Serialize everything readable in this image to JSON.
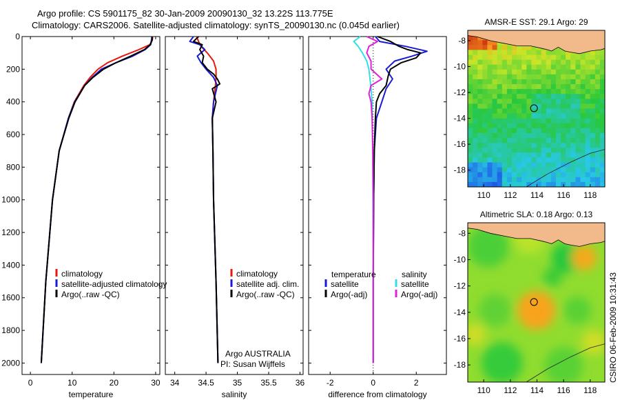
{
  "header": {
    "line1": "Argo profile: CS 5901175_82 30-Jan-2009 20090130_32 13.22S 113.775E",
    "line2": "Climatology: CARS2006. Satellite-adjusted climatology: synTS_20090130.nc (0.045d earlier)"
  },
  "colors": {
    "red": "#e8160b",
    "blue": "#1a1ad6",
    "black": "#000000",
    "cyan": "#30e0e8",
    "magenta": "#e020d8"
  },
  "chart_data": [
    {
      "id": "temperature",
      "type": "line",
      "xlabel": "temperature",
      "ylabel": "",
      "xlim": [
        -2,
        31
      ],
      "ylim": [
        0,
        2070
      ],
      "xticks": [
        0,
        10,
        20,
        30
      ],
      "xtick_labels": [
        "0",
        "10",
        "20",
        "30"
      ],
      "yticks": [
        0,
        200,
        400,
        600,
        800,
        1000,
        1200,
        1400,
        1600,
        1800,
        2000
      ],
      "ytick_labels": [
        "0",
        "200",
        "400",
        "600",
        "800",
        "1000",
        "1200",
        "1400",
        "1600",
        "1800",
        "2000"
      ],
      "legend": {
        "position": "lower-right",
        "entries": [
          "climatology",
          "satellite-adjusted climatology",
          "Argo(..raw -QC)"
        ]
      },
      "series": [
        {
          "name": "climatology",
          "color": "red",
          "depth": [
            0,
            20,
            50,
            80,
            120,
            160,
            200,
            250,
            300,
            400,
            500,
            700,
            1000,
            1500,
            2000
          ],
          "values": [
            29.3,
            29.2,
            28.6,
            26.0,
            22.0,
            18.5,
            16.2,
            14.3,
            12.8,
            10.5,
            9.1,
            6.9,
            5.3,
            3.7,
            2.6
          ]
        },
        {
          "name": "satellite-adjusted climatology",
          "color": "blue",
          "depth": [
            0,
            20,
            50,
            80,
            120,
            160,
            200,
            250,
            300,
            400,
            500,
            700,
            1000,
            1500,
            2000
          ],
          "values": [
            29.1,
            29.0,
            28.8,
            27.5,
            24.5,
            20.5,
            17.0,
            14.8,
            13.0,
            10.6,
            9.1,
            6.9,
            5.3,
            3.7,
            2.6
          ]
        },
        {
          "name": "Argo(..raw -QC)",
          "color": "black",
          "depth": [
            0,
            20,
            50,
            80,
            120,
            160,
            200,
            250,
            300,
            400,
            500,
            700,
            1000,
            1500,
            2000
          ],
          "values": [
            29.1,
            29.2,
            28.7,
            27.3,
            24.0,
            20.5,
            17.5,
            15.0,
            13.0,
            10.7,
            9.2,
            6.9,
            5.3,
            3.7,
            2.6
          ]
        }
      ]
    },
    {
      "id": "salinity",
      "type": "line",
      "xlabel": "salinity",
      "ylabel": "",
      "xlim": [
        33.85,
        36.05
      ],
      "ylim": [
        0,
        2070
      ],
      "xticks": [
        34,
        34.5,
        35,
        35.5,
        36
      ],
      "xtick_labels": [
        "34",
        "34.5",
        "35",
        "35.5",
        "36"
      ],
      "legend": {
        "position": "lower-right",
        "entries": [
          "climatology",
          "satellite adj. clim.",
          "Argo(..raw -QC)"
        ]
      },
      "annotations": [
        "Argo AUSTRALIA",
        "PI: Susan Wijffels"
      ],
      "series": [
        {
          "name": "climatology",
          "color": "red",
          "depth": [
            0,
            30,
            60,
            100,
            150,
            200,
            250,
            300,
            400,
            500,
            700,
            1000,
            1500,
            2000
          ],
          "values": [
            34.35,
            34.38,
            34.42,
            34.52,
            34.62,
            34.66,
            34.66,
            34.65,
            34.62,
            34.6,
            34.61,
            34.62,
            34.66,
            34.69
          ]
        },
        {
          "name": "satellite adj. clim.",
          "color": "blue",
          "depth": [
            0,
            30,
            50,
            80,
            120,
            160,
            200,
            250,
            300,
            400,
            500,
            700,
            1000,
            1500,
            2000
          ],
          "values": [
            34.3,
            34.24,
            34.4,
            34.48,
            34.36,
            34.42,
            34.5,
            34.62,
            34.68,
            34.62,
            34.6,
            34.61,
            34.62,
            34.66,
            34.69
          ]
        },
        {
          "name": "Argo(..raw -QC)",
          "color": "black",
          "depth": [
            0,
            30,
            50,
            80,
            120,
            160,
            200,
            230,
            260,
            290,
            320,
            400,
            500,
            700,
            1000,
            1500,
            2000
          ],
          "values": [
            34.38,
            34.3,
            34.44,
            34.4,
            34.46,
            34.44,
            34.52,
            34.62,
            34.68,
            34.72,
            34.6,
            34.66,
            34.6,
            34.61,
            34.62,
            34.66,
            34.69
          ]
        }
      ]
    },
    {
      "id": "difference",
      "type": "line",
      "xlabel": "difference from climatology",
      "ylabel": "",
      "xlim": [
        -3.0,
        3.4
      ],
      "ylim": [
        0,
        2070
      ],
      "xticks": [
        -2,
        0,
        2
      ],
      "xtick_labels": [
        "-2",
        "0",
        "2"
      ],
      "legend": {
        "position": "lower-center",
        "headers": [
          "temperature",
          "salinity"
        ],
        "entries": [
          "satellite",
          "Argo(-adj)",
          "satellite",
          "Argo(-adj)"
        ]
      },
      "series": [
        {
          "name": "temperature satellite",
          "color": "blue",
          "depth": [
            0,
            30,
            60,
            90,
            120,
            150,
            200,
            260,
            320,
            400,
            500,
            700,
            1000,
            1500,
            2000
          ],
          "values": [
            0.1,
            0.3,
            1.5,
            2.5,
            1.8,
            1.0,
            0.6,
            0.9,
            0.6,
            0.4,
            0.15,
            0.05,
            0.02,
            0.0,
            0.0
          ]
        },
        {
          "name": "temperature Argo(-adj)",
          "color": "black",
          "depth": [
            0,
            30,
            60,
            80,
            100,
            130,
            160,
            200,
            240,
            300,
            350,
            400,
            500,
            700,
            1000,
            1500,
            2000
          ],
          "values": [
            0.2,
            0.8,
            1.2,
            1.6,
            2.2,
            2.0,
            1.3,
            0.8,
            0.7,
            0.6,
            0.3,
            0.15,
            0.1,
            0.05,
            0.02,
            0.0,
            0.0
          ]
        },
        {
          "name": "salinity satellite",
          "color": "cyan",
          "depth": [
            0,
            30,
            60,
            100,
            150,
            200,
            260,
            320,
            400,
            500,
            700,
            1000,
            1500,
            2000
          ],
          "values": [
            -0.6,
            -0.9,
            -0.7,
            -0.5,
            -0.3,
            -0.2,
            -0.15,
            -0.1,
            -0.05,
            -0.05,
            -0.02,
            -0.01,
            0.0,
            0.0
          ]
        },
        {
          "name": "salinity Argo(-adj)",
          "color": "magenta",
          "depth": [
            0,
            30,
            60,
            100,
            150,
            200,
            260,
            300,
            350,
            400,
            500,
            700,
            1000,
            1500,
            2000
          ],
          "values": [
            -0.3,
            0.2,
            -0.2,
            -0.3,
            -0.1,
            -0.1,
            0.4,
            -0.1,
            -0.2,
            -0.1,
            -0.05,
            -0.02,
            0.0,
            0.0,
            0.0
          ]
        }
      ]
    },
    {
      "id": "sst-map",
      "type": "heatmap",
      "title": "AMSR-E SST: 29.1 Argo: 29",
      "xlim": [
        108.8,
        119.1
      ],
      "ylim": [
        -19.3,
        -7.2
      ],
      "xticks": [
        110,
        112,
        114,
        116,
        118
      ],
      "xtick_labels": [
        "110",
        "112",
        "114",
        "116",
        "118"
      ],
      "yticks": [
        -8,
        -10,
        -12,
        -14,
        -16,
        -18
      ],
      "ytick_labels": [
        "-8",
        "-10",
        "-12",
        "-14",
        "-16",
        "-18"
      ],
      "marker": {
        "lon": 113.775,
        "lat": -13.22
      }
    },
    {
      "id": "sla-map",
      "type": "heatmap",
      "title": "Altimetric SLA: 0.18 Argo: 0.13",
      "xlim": [
        108.8,
        119.1
      ],
      "ylim": [
        -19.3,
        -7.2
      ],
      "xticks": [
        110,
        112,
        114,
        116,
        118
      ],
      "xtick_labels": [
        "110",
        "112",
        "114",
        "116",
        "118"
      ],
      "yticks": [
        -8,
        -10,
        -12,
        -14,
        -16,
        -18
      ],
      "ytick_labels": [
        "-8",
        "-10",
        "-12",
        "-14",
        "-16",
        "-18"
      ],
      "marker": {
        "lon": 113.775,
        "lat": -13.22
      }
    }
  ],
  "footer": {
    "stamp": "CSIRO 06-Feb-2009 10:31:43"
  }
}
